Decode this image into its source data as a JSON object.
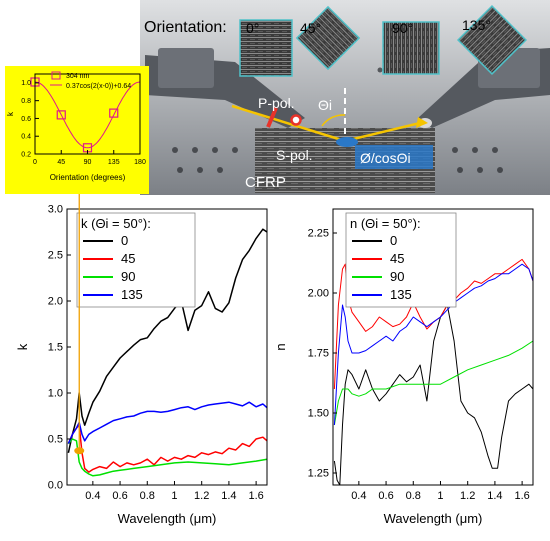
{
  "header": {
    "orientation_label": "Orientation:",
    "angles": [
      "0°",
      "45°",
      "90°",
      "135°"
    ]
  },
  "photo": {
    "labels": {
      "p_pol": "P-pol.",
      "s_pol": "S-pol.",
      "theta": "Θi",
      "spot": "Ø/cosΘi",
      "sample": "CFRP"
    },
    "colors": {
      "frame": "#4fc1c9",
      "beam": "#f5c400",
      "p_pol": "#e8332a",
      "spot": "#2a78c8"
    }
  },
  "chart_data": [
    {
      "type": "scatter",
      "panel": "inset",
      "background": "#ffff00",
      "xlabel": "Orientation (degrees)",
      "ylabel": "k",
      "xlim": [
        0,
        180
      ],
      "ylim": [
        0.2,
        1.1
      ],
      "xticks": [
        0,
        45,
        90,
        135,
        180
      ],
      "yticks": [
        0.2,
        0.4,
        0.6,
        0.8,
        1.0
      ],
      "legend": [
        "304 nm",
        "0.37cos(2(x-0))+0.64"
      ],
      "series": [
        {
          "name": "304 nm",
          "marker": "square",
          "color": "#e0188c",
          "x": [
            0,
            45,
            90,
            135
          ],
          "y": [
            1.01,
            0.64,
            0.27,
            0.66
          ]
        },
        {
          "name": "0.37cos(2(x-0))+0.64",
          "kind": "line",
          "color": "#e0188c",
          "formula": {
            "a": 0.37,
            "b": 0.64
          }
        }
      ]
    },
    {
      "type": "line",
      "panel": "k",
      "legend_title": "k (Θi = 50°):",
      "xlabel": "Wavelength (μm)",
      "ylabel": "k",
      "xlim": [
        0.21,
        1.68
      ],
      "ylim": [
        0,
        3.0
      ],
      "xticks": [
        0.4,
        0.6,
        0.8,
        1.0,
        1.2,
        1.4,
        1.6
      ],
      "yticks": [
        0,
        0.5,
        1.0,
        1.5,
        2.0,
        2.5,
        3.0
      ],
      "marker_point": {
        "x": 0.3,
        "y": 0.72
      },
      "series": [
        {
          "name": "0",
          "color": "#000000",
          "x": [
            0.22,
            0.25,
            0.28,
            0.3,
            0.32,
            0.34,
            0.37,
            0.4,
            0.45,
            0.5,
            0.55,
            0.6,
            0.65,
            0.7,
            0.75,
            0.8,
            0.85,
            0.9,
            0.95,
            1.0,
            1.05,
            1.1,
            1.15,
            1.2,
            1.25,
            1.3,
            1.35,
            1.4,
            1.45,
            1.5,
            1.55,
            1.6,
            1.65,
            1.68
          ],
          "y": [
            0.35,
            0.55,
            0.72,
            1.0,
            0.75,
            0.65,
            0.78,
            0.9,
            1.02,
            1.18,
            1.28,
            1.38,
            1.45,
            1.52,
            1.58,
            1.6,
            1.7,
            1.78,
            1.82,
            1.92,
            2.0,
            1.68,
            1.9,
            1.95,
            2.1,
            1.92,
            1.88,
            1.98,
            2.25,
            2.45,
            2.55,
            2.68,
            2.78,
            2.75
          ]
        },
        {
          "name": "45",
          "color": "#ff0000",
          "x": [
            0.22,
            0.25,
            0.28,
            0.3,
            0.32,
            0.34,
            0.37,
            0.4,
            0.45,
            0.5,
            0.55,
            0.6,
            0.65,
            0.7,
            0.75,
            0.8,
            0.85,
            0.9,
            0.95,
            1.0,
            1.05,
            1.1,
            1.15,
            1.2,
            1.25,
            1.3,
            1.35,
            1.4,
            1.45,
            1.5,
            1.55,
            1.6,
            1.65,
            1.68
          ],
          "y": [
            0.45,
            0.55,
            0.62,
            0.65,
            0.35,
            0.18,
            0.14,
            0.17,
            0.2,
            0.18,
            0.25,
            0.2,
            0.24,
            0.22,
            0.24,
            0.28,
            0.22,
            0.3,
            0.26,
            0.3,
            0.28,
            0.32,
            0.3,
            0.35,
            0.33,
            0.36,
            0.34,
            0.4,
            0.38,
            0.45,
            0.42,
            0.5,
            0.52,
            0.48
          ]
        },
        {
          "name": "90",
          "color": "#00e000",
          "x": [
            0.22,
            0.25,
            0.28,
            0.3,
            0.32,
            0.34,
            0.37,
            0.4,
            0.45,
            0.5,
            0.55,
            0.6,
            0.7,
            0.8,
            0.9,
            1.0,
            1.1,
            1.2,
            1.3,
            1.4,
            1.5,
            1.6,
            1.68
          ],
          "y": [
            0.45,
            0.5,
            0.48,
            0.25,
            0.18,
            0.15,
            0.12,
            0.1,
            0.11,
            0.13,
            0.15,
            0.16,
            0.18,
            0.2,
            0.22,
            0.24,
            0.25,
            0.24,
            0.23,
            0.22,
            0.24,
            0.26,
            0.28
          ]
        },
        {
          "name": "135",
          "color": "#0000ff",
          "x": [
            0.22,
            0.25,
            0.28,
            0.3,
            0.32,
            0.34,
            0.37,
            0.4,
            0.45,
            0.5,
            0.55,
            0.6,
            0.65,
            0.7,
            0.75,
            0.8,
            0.85,
            0.9,
            0.95,
            1.0,
            1.05,
            1.1,
            1.15,
            1.2,
            1.25,
            1.3,
            1.35,
            1.4,
            1.45,
            1.5,
            1.55,
            1.6,
            1.65,
            1.68
          ],
          "y": [
            0.45,
            0.55,
            0.62,
            0.68,
            0.55,
            0.48,
            0.55,
            0.58,
            0.62,
            0.66,
            0.7,
            0.72,
            0.74,
            0.75,
            0.78,
            0.8,
            0.8,
            0.79,
            0.8,
            0.82,
            0.84,
            0.85,
            0.82,
            0.85,
            0.87,
            0.88,
            0.89,
            0.9,
            0.88,
            0.86,
            0.9,
            0.85,
            0.88,
            0.84
          ]
        }
      ]
    },
    {
      "type": "line",
      "panel": "n",
      "legend_title": "n (Θi = 50°):",
      "xlabel": "Wavelength (μm)",
      "ylabel": "n",
      "xlim": [
        0.21,
        1.68
      ],
      "ylim": [
        1.2,
        2.35
      ],
      "xticks": [
        0.4,
        0.6,
        0.8,
        1.0,
        1.2,
        1.4,
        1.6
      ],
      "yticks": [
        1.25,
        1.5,
        1.75,
        2.0,
        2.25
      ],
      "series": [
        {
          "name": "0",
          "color": "#000000",
          "x": [
            0.22,
            0.24,
            0.26,
            0.28,
            0.3,
            0.32,
            0.35,
            0.4,
            0.45,
            0.5,
            0.55,
            0.6,
            0.65,
            0.7,
            0.75,
            0.8,
            0.85,
            0.9,
            0.95,
            1.0,
            1.05,
            1.1,
            1.15,
            1.2,
            1.25,
            1.3,
            1.35,
            1.38,
            1.42,
            1.45,
            1.5,
            1.55,
            1.6,
            1.65,
            1.68
          ],
          "y": [
            1.3,
            1.22,
            1.2,
            1.45,
            1.62,
            1.68,
            1.66,
            1.6,
            1.68,
            1.6,
            1.55,
            1.58,
            1.62,
            1.66,
            1.63,
            1.65,
            1.7,
            1.55,
            1.8,
            1.9,
            1.95,
            1.8,
            1.55,
            1.5,
            1.48,
            1.42,
            1.32,
            1.27,
            1.27,
            1.4,
            1.55,
            1.58,
            1.6,
            1.62,
            1.6
          ]
        },
        {
          "name": "45",
          "color": "#ff0000",
          "x": [
            0.22,
            0.25,
            0.28,
            0.3,
            0.32,
            0.35,
            0.4,
            0.45,
            0.5,
            0.55,
            0.6,
            0.65,
            0.7,
            0.75,
            0.8,
            0.85,
            0.9,
            0.95,
            1.0,
            1.05,
            1.1,
            1.15,
            1.2,
            1.25,
            1.3,
            1.35,
            1.4,
            1.45,
            1.5,
            1.55,
            1.6,
            1.65,
            1.68
          ],
          "y": [
            1.6,
            1.95,
            2.1,
            2.12,
            1.98,
            1.92,
            1.88,
            1.84,
            1.86,
            1.9,
            1.88,
            1.86,
            1.87,
            1.9,
            1.96,
            1.9,
            1.85,
            1.88,
            1.9,
            1.95,
            1.97,
            2.0,
            2.02,
            2.05,
            2.04,
            2.06,
            2.08,
            2.08,
            2.1,
            2.12,
            2.14,
            2.1,
            2.05
          ]
        },
        {
          "name": "90",
          "color": "#00e000",
          "x": [
            0.22,
            0.25,
            0.28,
            0.3,
            0.32,
            0.35,
            0.4,
            0.45,
            0.5,
            0.55,
            0.6,
            0.7,
            0.8,
            0.9,
            1.0,
            1.1,
            1.2,
            1.3,
            1.4,
            1.5,
            1.6,
            1.68
          ],
          "y": [
            1.45,
            1.55,
            1.6,
            1.6,
            1.6,
            1.58,
            1.57,
            1.58,
            1.6,
            1.6,
            1.6,
            1.62,
            1.62,
            1.62,
            1.62,
            1.65,
            1.68,
            1.7,
            1.72,
            1.74,
            1.77,
            1.8
          ]
        },
        {
          "name": "135",
          "color": "#0000ff",
          "x": [
            0.22,
            0.25,
            0.28,
            0.3,
            0.32,
            0.35,
            0.4,
            0.45,
            0.5,
            0.55,
            0.6,
            0.65,
            0.7,
            0.75,
            0.8,
            0.85,
            0.9,
            0.95,
            1.0,
            1.05,
            1.1,
            1.15,
            1.2,
            1.25,
            1.3,
            1.35,
            1.4,
            1.45,
            1.5,
            1.55,
            1.6,
            1.65,
            1.68
          ],
          "y": [
            1.45,
            1.75,
            1.95,
            1.9,
            1.8,
            1.75,
            1.75,
            1.76,
            1.78,
            1.8,
            1.82,
            1.8,
            1.84,
            1.86,
            1.9,
            1.88,
            1.86,
            1.88,
            1.9,
            1.93,
            1.96,
            1.98,
            2.0,
            2.02,
            2.03,
            2.05,
            2.06,
            2.08,
            2.08,
            2.1,
            2.12,
            2.1,
            2.05
          ]
        }
      ]
    }
  ]
}
